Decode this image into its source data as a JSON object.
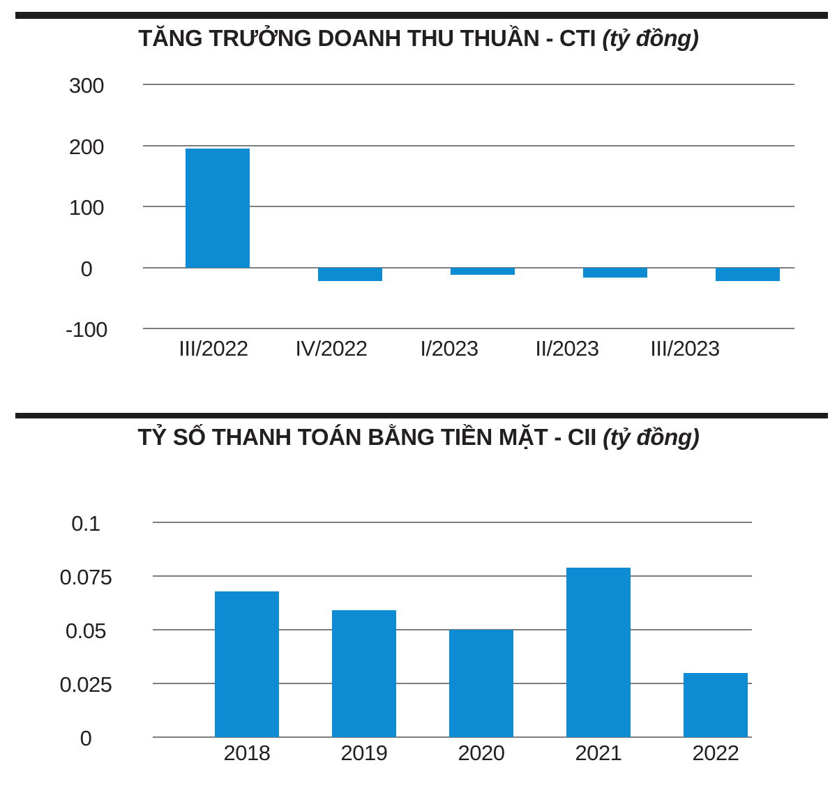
{
  "theme": {
    "bar_color": "#0d8cd3",
    "grid_color": "#7d7d7d",
    "text_color": "#231f20",
    "divider_color": "#1f1c1d"
  },
  "charts": [
    {
      "title_main": "TĂNG TRƯỞNG DOANH THU THUẦN - CTI",
      "title_unit": "(tỷ đồng)",
      "y_ticks": [
        "300",
        "200",
        "100",
        "0",
        "-100"
      ],
      "categories": [
        "III/2022",
        "IV/2022",
        "I/2023",
        "II/2023",
        "III/2023"
      ]
    },
    {
      "title_main": "TỶ SỐ THANH TOÁN BẰNG TIỀN MẶT - CII",
      "title_unit": "(tỷ đồng)",
      "y_ticks": [
        "0.1",
        "0.075",
        "0.05",
        "0.025",
        "0"
      ],
      "categories": [
        "2018",
        "2019",
        "2020",
        "2021",
        "2022"
      ]
    }
  ],
  "chart_data": [
    {
      "type": "bar",
      "title": "TĂNG TRƯỞNG DOANH THU THUẦN - CTI (tỷ đồng)",
      "xlabel": "",
      "ylabel": "",
      "categories": [
        "III/2022",
        "IV/2022",
        "I/2023",
        "II/2023",
        "III/2023"
      ],
      "values": [
        195,
        -22,
        -12,
        -17,
        -22
      ],
      "ylim": [
        -100,
        300
      ],
      "yticks": [
        300,
        200,
        100,
        0,
        -100
      ],
      "grid": true,
      "legend": false
    },
    {
      "type": "bar",
      "title": "TỶ SỐ THANH TOÁN BẰNG TIỀN MẶT - CII (tỷ đồng)",
      "xlabel": "",
      "ylabel": "",
      "categories": [
        "2018",
        "2019",
        "2020",
        "2021",
        "2022"
      ],
      "values": [
        0.068,
        0.059,
        0.05,
        0.079,
        0.03
      ],
      "ylim": [
        0,
        0.1
      ],
      "yticks": [
        0.1,
        0.075,
        0.05,
        0.025,
        0
      ],
      "grid": true,
      "legend": false
    }
  ]
}
